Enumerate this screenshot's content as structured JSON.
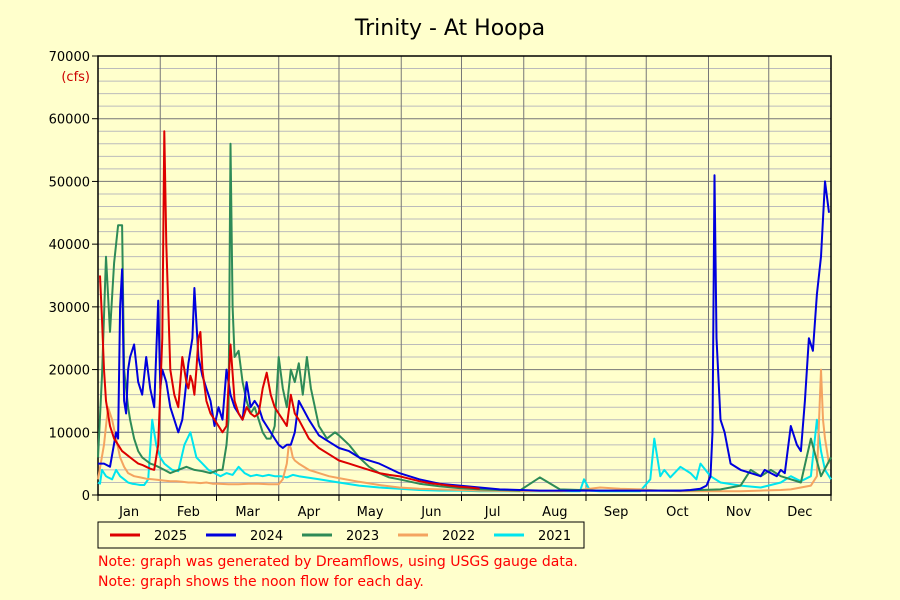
{
  "title": "Trinity - At Hoopa",
  "unit_label": "(cfs)",
  "notes": [
    "Note: graph was generated by Dreamflows, using USGS gauge data.",
    "Note: graph shows the noon flow for each day."
  ],
  "chart_data": {
    "type": "line",
    "title": "Trinity - At Hoopa",
    "ylabel": "(cfs)",
    "xlabel": "",
    "ylim": [
      0,
      70000
    ],
    "xlim": [
      0,
      365
    ],
    "y_ticks": [
      0,
      10000,
      20000,
      30000,
      40000,
      50000,
      60000,
      70000
    ],
    "y_tick_labels": [
      "0",
      "10000",
      "20000",
      "30000",
      "40000",
      "50000",
      "60000",
      "70000"
    ],
    "months": [
      "Jan",
      "Feb",
      "Mar",
      "Apr",
      "May",
      "Jun",
      "Jul",
      "Aug",
      "Sep",
      "Oct",
      "Nov",
      "Dec"
    ],
    "month_starts": [
      0,
      31,
      59,
      90,
      120,
      151,
      181,
      212,
      243,
      273,
      304,
      334,
      365
    ],
    "grid": true,
    "legend_position": "bottom-left",
    "series": [
      {
        "name": "2025",
        "color": "#dd0000",
        "x": [
          1,
          2,
          3,
          4,
          6,
          8,
          10,
          12,
          14,
          16,
          18,
          20,
          22,
          24,
          26,
          28,
          30,
          32,
          33,
          34,
          36,
          38,
          40,
          42,
          44,
          45,
          46,
          47,
          48,
          49,
          50,
          51,
          52,
          54,
          56,
          58,
          60,
          62,
          64,
          66,
          68,
          70,
          72,
          74,
          76,
          78,
          80,
          82,
          84,
          86,
          88,
          90,
          92,
          94,
          96,
          98,
          100,
          105,
          110,
          115,
          120,
          125,
          130,
          135,
          140,
          145,
          150,
          155,
          160,
          165,
          170,
          175,
          180,
          185,
          190
        ],
        "y": [
          35000,
          28000,
          20000,
          15000,
          11000,
          9000,
          8000,
          7000,
          6500,
          6000,
          5500,
          5000,
          4800,
          4500,
          4200,
          4000,
          8000,
          25000,
          58000,
          40000,
          20000,
          16000,
          14000,
          22000,
          18000,
          17000,
          19000,
          18000,
          16000,
          20000,
          25000,
          26000,
          20000,
          15000,
          13000,
          12000,
          11000,
          10000,
          11000,
          24000,
          15000,
          13000,
          12000,
          14000,
          13000,
          12500,
          13000,
          17000,
          19500,
          16000,
          14000,
          13000,
          12000,
          11000,
          16000,
          13000,
          12000,
          9000,
          7500,
          6500,
          5500,
          5000,
          4500,
          4000,
          3500,
          3200,
          3000,
          2600,
          2200,
          1900,
          1700,
          1500,
          1300,
          1200,
          1000
        ]
      },
      {
        "name": "2024",
        "color": "#0000dd",
        "x": [
          0,
          3,
          6,
          9,
          10,
          11,
          12,
          13,
          14,
          15,
          16,
          18,
          20,
          22,
          24,
          26,
          28,
          30,
          31,
          32,
          34,
          36,
          38,
          40,
          42,
          45,
          47,
          48,
          50,
          52,
          54,
          56,
          58,
          60,
          62,
          64,
          66,
          68,
          70,
          72,
          74,
          76,
          78,
          80,
          82,
          84,
          86,
          88,
          90,
          92,
          94,
          96,
          98,
          100,
          105,
          110,
          115,
          120,
          125,
          130,
          140,
          150,
          160,
          170,
          180,
          190,
          200,
          210,
          220,
          230,
          240,
          250,
          260,
          270,
          280,
          290,
          295,
          300,
          303,
          305,
          306,
          307,
          308,
          310,
          312,
          315,
          320,
          325,
          330,
          332,
          335,
          338,
          340,
          342,
          345,
          348,
          350,
          352,
          354,
          356,
          358,
          360,
          362,
          364
        ],
        "y": [
          5000,
          5000,
          4500,
          10000,
          9000,
          30000,
          36000,
          15000,
          13000,
          20000,
          22000,
          24000,
          18000,
          16000,
          22000,
          17000,
          14000,
          31000,
          17000,
          20000,
          18000,
          14000,
          12000,
          10000,
          12000,
          21000,
          25000,
          33000,
          22000,
          19000,
          17000,
          15000,
          11000,
          14000,
          12000,
          20000,
          16000,
          14000,
          13000,
          12000,
          18000,
          14000,
          15000,
          14000,
          12000,
          11000,
          10000,
          9000,
          8000,
          7500,
          8000,
          8000,
          10000,
          15000,
          12000,
          9500,
          8500,
          7500,
          7000,
          6000,
          5000,
          3500,
          2500,
          1800,
          1500,
          1200,
          900,
          800,
          700,
          700,
          700,
          700,
          700,
          700,
          700,
          700,
          800,
          1000,
          1500,
          3000,
          10000,
          51000,
          25000,
          12000,
          10000,
          5000,
          4000,
          3500,
          3000,
          4000,
          3500,
          3000,
          4000,
          3500,
          11000,
          8000,
          7000,
          15000,
          25000,
          23000,
          32000,
          38000,
          50000,
          45000
        ]
      },
      {
        "name": "2023",
        "color": "#2e8b57",
        "x": [
          0,
          2,
          4,
          6,
          8,
          10,
          12,
          13,
          15,
          16,
          18,
          20,
          22,
          24,
          26,
          28,
          30,
          33,
          36,
          40,
          44,
          48,
          52,
          56,
          60,
          62,
          64,
          65,
          66,
          67,
          68,
          70,
          72,
          74,
          76,
          78,
          80,
          82,
          84,
          86,
          88,
          90,
          92,
          94,
          96,
          98,
          100,
          102,
          104,
          106,
          108,
          110,
          112,
          114,
          116,
          118,
          120,
          125,
          130,
          135,
          140,
          145,
          150,
          160,
          170,
          180,
          190,
          200,
          210,
          220,
          230,
          240,
          250,
          260,
          270,
          280,
          290,
          300,
          310,
          320,
          325,
          330,
          335,
          340,
          345,
          350,
          355,
          360,
          365
        ],
        "y": [
          6000,
          19000,
          38000,
          26000,
          37000,
          43000,
          43000,
          20000,
          14000,
          12000,
          9000,
          7000,
          6000,
          5500,
          5000,
          4800,
          4500,
          4000,
          3500,
          4000,
          4500,
          4000,
          3800,
          3500,
          4000,
          4000,
          8000,
          12000,
          56000,
          30000,
          22000,
          23000,
          18000,
          15000,
          13000,
          14000,
          12000,
          10000,
          9000,
          9000,
          11000,
          22000,
          17000,
          14000,
          20000,
          18000,
          21000,
          16000,
          22000,
          17000,
          14000,
          11000,
          10000,
          9000,
          9500,
          10000,
          9500,
          8000,
          6000,
          4500,
          3500,
          2800,
          2500,
          1800,
          1400,
          1100,
          900,
          800,
          700,
          2800,
          900,
          800,
          700,
          700,
          700,
          700,
          700,
          800,
          900,
          1500,
          4000,
          3000,
          4000,
          3000,
          2500,
          2000,
          9000,
          3000,
          6000
        ]
      },
      {
        "name": "2022",
        "color": "#f4a460",
        "x": [
          0,
          3,
          5,
          7,
          9,
          11,
          13,
          15,
          18,
          21,
          24,
          27,
          30,
          33,
          36,
          39,
          42,
          45,
          48,
          51,
          54,
          57,
          60,
          65,
          70,
          75,
          80,
          85,
          90,
          92,
          94,
          95,
          96,
          97,
          98,
          100,
          105,
          110,
          115,
          120,
          130,
          140,
          150,
          160,
          170,
          180,
          190,
          200,
          210,
          220,
          230,
          240,
          250,
          260,
          270,
          280,
          290,
          300,
          310,
          320,
          330,
          340,
          345,
          350,
          355,
          358,
          360,
          361,
          362,
          363,
          364
        ],
        "y": [
          2500,
          8000,
          14000,
          12000,
          9000,
          6000,
          4500,
          3500,
          3000,
          2800,
          2600,
          2500,
          2400,
          2300,
          2200,
          2200,
          2100,
          2000,
          2000,
          1900,
          2000,
          1800,
          1800,
          1700,
          1700,
          1800,
          1800,
          1700,
          1700,
          2500,
          5000,
          8000,
          7500,
          6000,
          5500,
          5000,
          4000,
          3500,
          3000,
          2700,
          2100,
          1600,
          1200,
          1000,
          900,
          800,
          700,
          650,
          600,
          650,
          600,
          800,
          1200,
          1000,
          900,
          700,
          600,
          600,
          600,
          600,
          700,
          800,
          900,
          1200,
          1500,
          3000,
          20000,
          12000,
          9000,
          7000,
          5000
        ]
      },
      {
        "name": "2021",
        "color": "#00e5ee",
        "x": [
          0,
          1,
          2,
          3,
          4,
          5,
          7,
          9,
          11,
          13,
          15,
          17,
          19,
          21,
          23,
          25,
          27,
          29,
          31,
          33,
          35,
          37,
          40,
          43,
          46,
          49,
          52,
          55,
          58,
          61,
          64,
          67,
          70,
          73,
          76,
          79,
          82,
          85,
          88,
          91,
          94,
          97,
          100,
          110,
          120,
          130,
          140,
          150,
          160,
          170,
          180,
          190,
          200,
          210,
          220,
          230,
          240,
          242,
          245,
          250,
          260,
          270,
          275,
          277,
          279,
          280,
          282,
          285,
          290,
          295,
          298,
          300,
          305,
          310,
          320,
          330,
          340,
          345,
          348,
          350,
          355,
          358,
          360,
          362,
          365
        ],
        "y": [
          2000,
          1800,
          4000,
          3500,
          3000,
          2800,
          2500,
          4000,
          3000,
          2500,
          2000,
          1800,
          1700,
          1600,
          1600,
          2500,
          12000,
          8000,
          6000,
          5000,
          4500,
          4000,
          3800,
          8000,
          10000,
          6000,
          5000,
          4000,
          3500,
          3000,
          3500,
          3200,
          4500,
          3500,
          3000,
          3200,
          3000,
          3200,
          3000,
          3000,
          2800,
          3200,
          3000,
          2500,
          2000,
          1500,
          1200,
          1000,
          800,
          700,
          700,
          600,
          600,
          600,
          600,
          600,
          600,
          2500,
          700,
          600,
          600,
          600,
          2500,
          9000,
          5000,
          3000,
          4000,
          2800,
          4500,
          3500,
          2500,
          5000,
          3000,
          2000,
          1500,
          1200,
          2000,
          3000,
          2500,
          2200,
          3000,
          12000,
          7000,
          4000,
          2500
        ]
      }
    ]
  }
}
